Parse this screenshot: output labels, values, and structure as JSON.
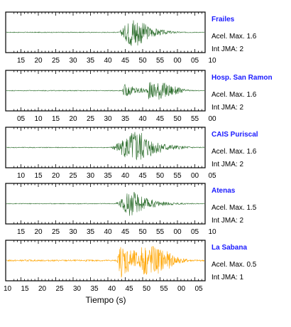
{
  "chart_data": [
    {
      "type": "line",
      "station": "Frailes",
      "accel_text": "Acel. Max. 1.6",
      "jma_text": "Int JMA: 2",
      "color": "#2d6e2d",
      "tick_labels": [
        "15",
        "20",
        "25",
        "30",
        "35",
        "40",
        "45",
        "50",
        "55",
        "00",
        "05",
        "10"
      ],
      "shape": {
        "onset": 32.5,
        "peak": 37,
        "decay": 4,
        "amp": 1.0,
        "noise": 0.02,
        "secondary": []
      }
    },
    {
      "type": "line",
      "station": "Hosp. San Ramon",
      "accel_text": "Acel. Max. 1.6",
      "jma_text": "Int JMA: 2",
      "color": "#2d6e2d",
      "tick_labels": [
        "05",
        "10",
        "15",
        "20",
        "25",
        "30",
        "35",
        "40",
        "45",
        "50",
        "55",
        "00"
      ],
      "shape": {
        "onset": 33.5,
        "peak": 34,
        "decay": 6,
        "amp": 0.35,
        "noise": 0.02,
        "secondary": [
          [
            43,
            0.5,
            7
          ]
        ]
      }
    },
    {
      "type": "line",
      "station": "CAIS Puriscal",
      "accel_text": "Acel. Max. 1.6",
      "jma_text": "Int JMA: 2",
      "color": "#2d6e2d",
      "tick_labels": [
        "10",
        "15",
        "20",
        "25",
        "30",
        "35",
        "40",
        "45",
        "50",
        "55",
        "00",
        "05"
      ],
      "shape": {
        "onset": 30,
        "peak": 38,
        "decay": 5,
        "amp": 1.0,
        "noise": 0.02,
        "secondary": [
          [
            34,
            0.25,
            4
          ]
        ]
      }
    },
    {
      "type": "line",
      "station": "Atenas",
      "accel_text": "Acel. Max. 1.5",
      "jma_text": "Int JMA: 2",
      "color": "#2d6e2d",
      "tick_labels": [
        "15",
        "20",
        "25",
        "30",
        "35",
        "40",
        "45",
        "50",
        "55",
        "00",
        "05",
        "10"
      ],
      "shape": {
        "onset": 31.5,
        "peak": 36,
        "decay": 5,
        "amp": 0.75,
        "noise": 0.02,
        "secondary": []
      }
    },
    {
      "type": "line",
      "station": "La Sabana",
      "accel_text": "Acel. Max. 0.5",
      "jma_text": "Int JMA: 1",
      "color": "#ffa500",
      "tick_labels": [
        "10",
        "15",
        "20",
        "25",
        "30",
        "35",
        "40",
        "45",
        "50",
        "55",
        "00",
        "05"
      ],
      "shape": {
        "onset": 32,
        "peak": 33,
        "decay": 7,
        "amp": 0.95,
        "noise": 0.04,
        "secondary": [
          [
            41,
            0.85,
            8
          ]
        ]
      }
    }
  ],
  "xlabel": "Tiempo (s)"
}
